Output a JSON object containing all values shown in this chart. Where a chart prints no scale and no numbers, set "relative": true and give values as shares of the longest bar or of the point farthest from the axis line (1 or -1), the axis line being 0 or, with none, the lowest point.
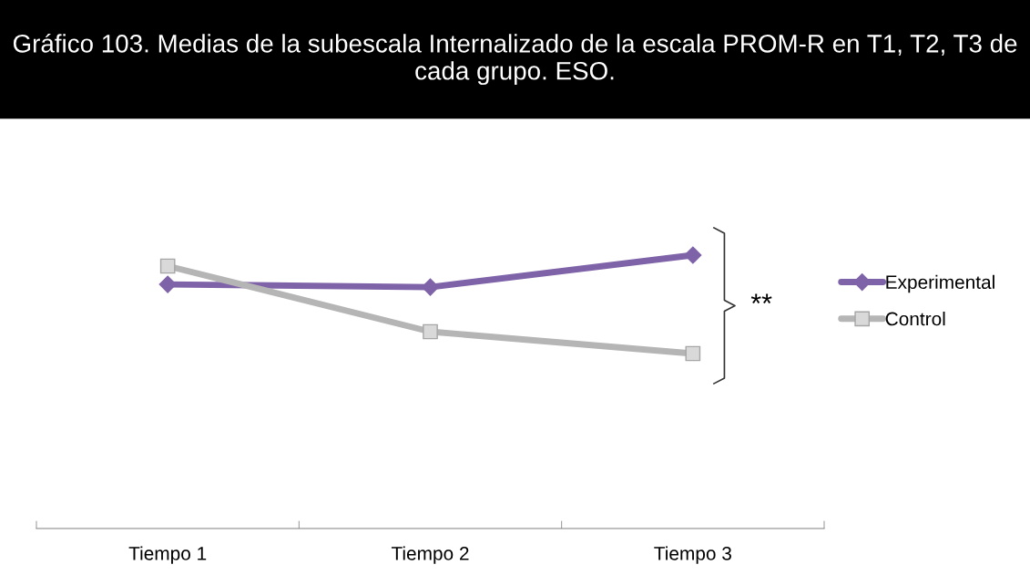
{
  "chart_data": {
    "type": "line",
    "title": "Gráfico 103. Medias de la subescala Internalizado de la escala PROM-R en T1, T2, T3 de cada grupo. ESO.",
    "categories": [
      "Tiempo 1",
      "Tiempo 2",
      "Tiempo 3"
    ],
    "relative": true,
    "series": [
      {
        "name": "Experimental",
        "color": "#7f63a8",
        "values": [
          0.893,
          0.883,
          1.0
        ],
        "marker": "diamond"
      },
      {
        "name": "Control",
        "color": "#b5b5b5",
        "values": [
          0.96,
          0.72,
          0.64
        ],
        "marker": "square"
      }
    ],
    "annotations": [
      "**"
    ],
    "legend": "right",
    "grid": false
  }
}
